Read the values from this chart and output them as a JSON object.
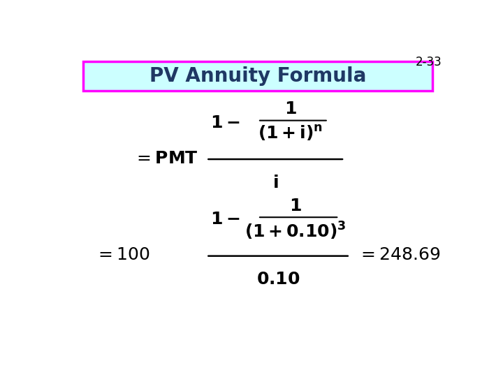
{
  "slide_number": "2-33",
  "title": "PV Annuity Formula",
  "title_color": "#1F3864",
  "title_bg_color": "#CCFFFF",
  "title_border_color": "#FF00FF",
  "background_color": "#FFFFFF",
  "formula_color": "#000000",
  "slide_num_color": "#000000",
  "title_fontsize": 20,
  "slide_num_fontsize": 12,
  "formula_fontsize": 17
}
